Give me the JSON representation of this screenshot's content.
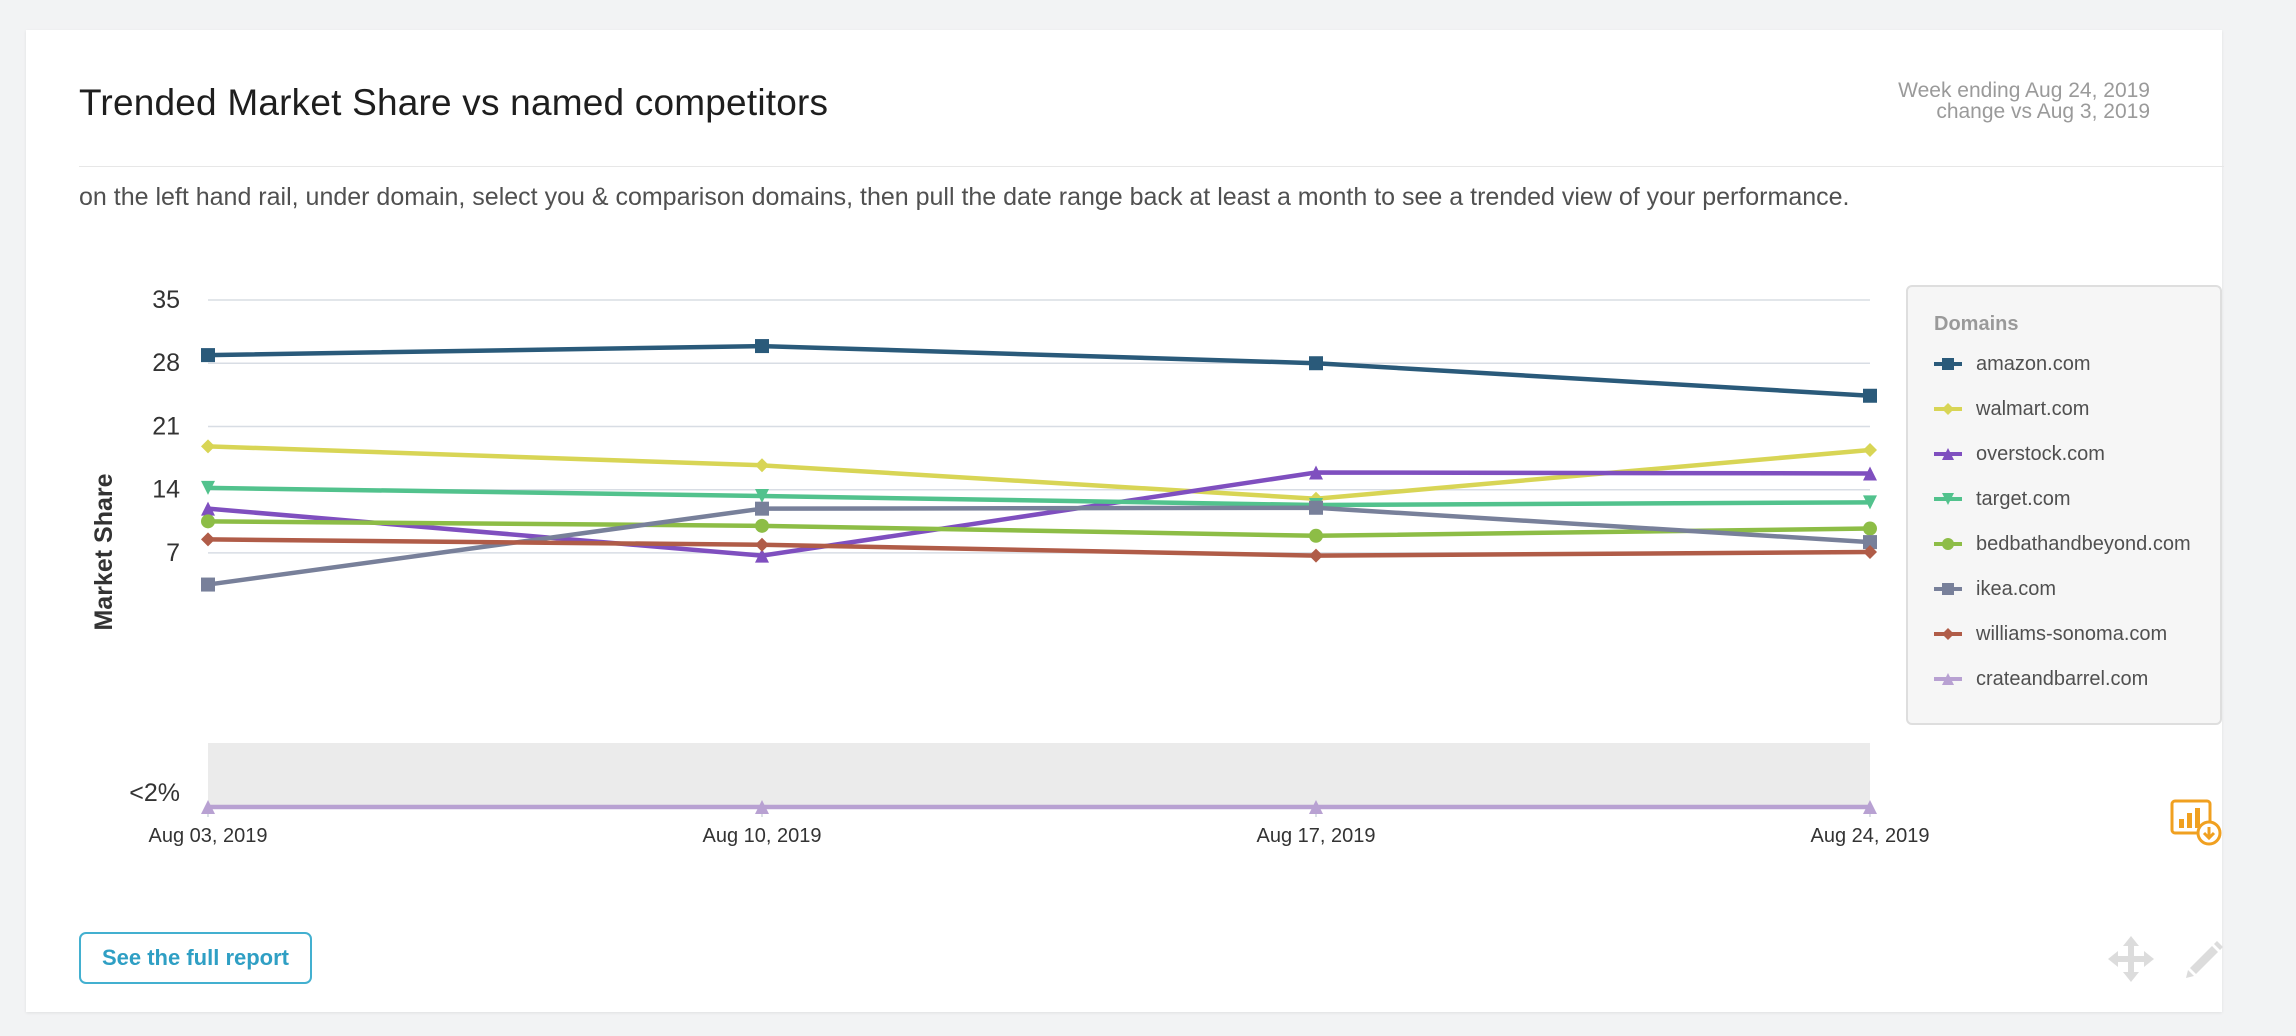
{
  "card": {
    "title": "Trended Market Share vs named competitors",
    "period_line1": "Week ending Aug 24, 2019",
    "period_line2": "change vs Aug 3, 2019",
    "description": "on the left hand rail, under domain, select you & comparison domains, then pull the date range back at least a month to see a trended view of your performance.",
    "full_report_label": "See the full report",
    "icons": [
      "export-chart-icon",
      "move-icon",
      "edit-pencil-icon"
    ]
  },
  "chart_data": {
    "type": "line",
    "title": "",
    "xlabel": "",
    "ylabel": "Market Share",
    "categories": [
      "Aug 03, 2019",
      "Aug 10, 2019",
      "Aug 17, 2019",
      "Aug 24, 2019"
    ],
    "y_ticks": [
      "35",
      "28",
      "21",
      "14",
      "7",
      "<2%"
    ],
    "ylim": [
      2,
      35
    ],
    "below_threshold_band": "<2%",
    "grid": true,
    "legend_title": "Domains",
    "legend_position": "right",
    "series": [
      {
        "name": "amazon.com",
        "color": "#2a5a7a",
        "marker": "square",
        "values": [
          28.9,
          29.9,
          28.0,
          24.4
        ]
      },
      {
        "name": "walmart.com",
        "color": "#d8d555",
        "marker": "diamond",
        "values": [
          18.8,
          16.7,
          13.0,
          18.4
        ]
      },
      {
        "name": "overstock.com",
        "color": "#7f4fbf",
        "marker": "triangle-up",
        "values": [
          11.9,
          6.7,
          15.9,
          15.8
        ]
      },
      {
        "name": "target.com",
        "color": "#52c28d",
        "marker": "triangle-down",
        "values": [
          14.2,
          13.3,
          12.3,
          12.6
        ]
      },
      {
        "name": "bedbathandbeyond.com",
        "color": "#8dbd46",
        "marker": "circle",
        "values": [
          10.5,
          10.0,
          8.9,
          9.7
        ]
      },
      {
        "name": "ikea.com",
        "color": "#78809a",
        "marker": "square",
        "values": [
          3.5,
          11.9,
          12.0,
          8.2
        ]
      },
      {
        "name": "williams-sonoma.com",
        "color": "#b05c48",
        "marker": "diamond",
        "values": [
          8.5,
          7.9,
          6.7,
          7.1
        ]
      },
      {
        "name": "crateandbarrel.com",
        "color": "#b8a1d2",
        "marker": "triangle-up",
        "values": [
          null,
          null,
          null,
          1.2
        ]
      }
    ]
  }
}
